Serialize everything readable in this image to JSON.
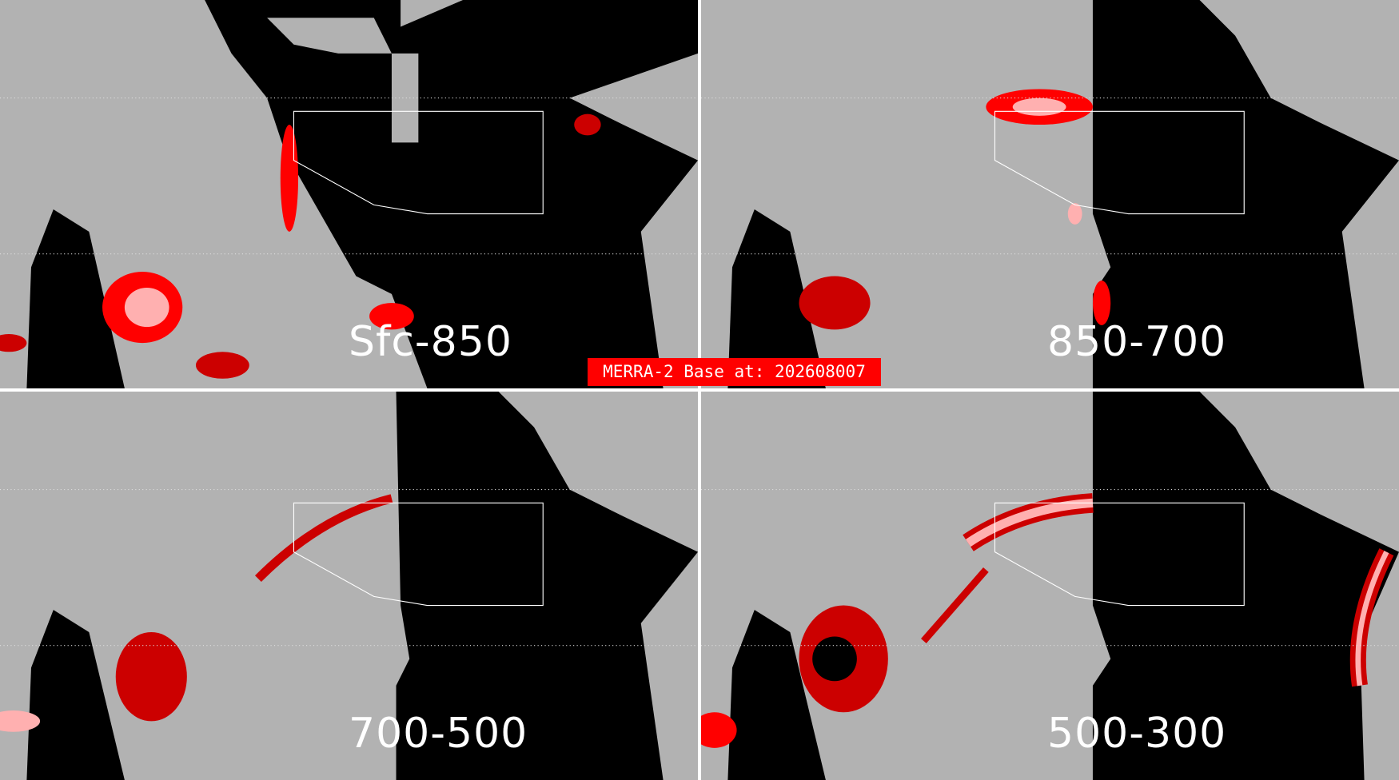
{
  "panels": [
    {
      "label": "Sfc-850"
    },
    {
      "label": "850-700"
    },
    {
      "label": "700-500"
    },
    {
      "label": "500-300"
    }
  ],
  "base_label": "MERRA-2 Base at: 202608007",
  "colors": {
    "background": "#b2b2b2",
    "mask": "#000000",
    "high": "#ff0000",
    "medium": "#cc0000",
    "low": "#ffb0b0",
    "boundaries": "#ffffff"
  }
}
